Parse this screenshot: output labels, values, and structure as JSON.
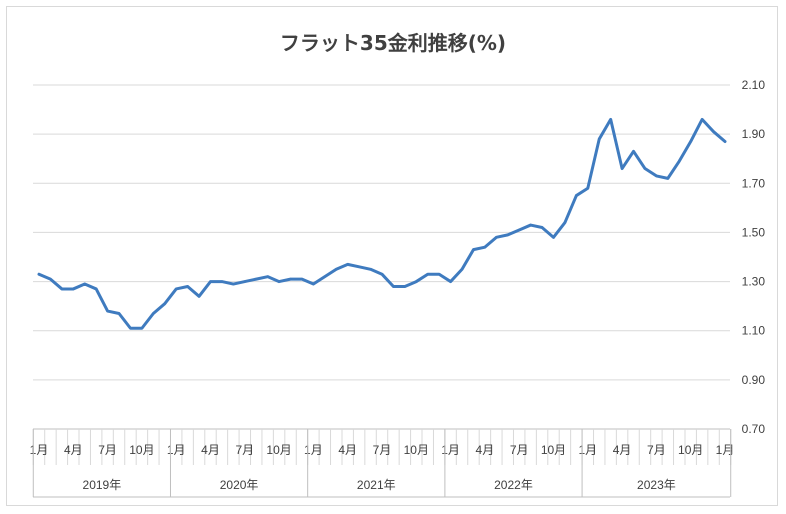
{
  "chart_data": {
    "type": "line",
    "title": "フラット35金利推移(%)",
    "xlabel": "",
    "ylabel": "",
    "ylim": [
      0.7,
      2.1
    ],
    "yticks": [
      "0.70",
      "0.90",
      "1.10",
      "1.30",
      "1.50",
      "1.70",
      "1.90",
      "2.10"
    ],
    "grid": true,
    "legend": "none",
    "line_color": "#3f7bbf",
    "month_tick_labels": [
      "1月",
      "4月",
      "7月",
      "10月"
    ],
    "years": [
      "2019年",
      "2020年",
      "2021年",
      "2022年",
      "2023年"
    ],
    "last_tick_label": "1月",
    "series": [
      {
        "values": [
          1.33,
          1.31,
          1.27,
          1.27,
          1.29,
          1.27,
          1.18,
          1.17,
          1.11,
          1.11,
          1.17,
          1.21,
          1.27,
          1.28,
          1.24,
          1.3,
          1.3,
          1.29,
          1.3,
          1.31,
          1.32,
          1.3,
          1.31,
          1.31,
          1.29,
          1.32,
          1.35,
          1.37,
          1.36,
          1.35,
          1.33,
          1.28,
          1.28,
          1.3,
          1.33,
          1.33,
          1.3,
          1.35,
          1.43,
          1.44,
          1.48,
          1.49,
          1.51,
          1.53,
          1.52,
          1.48,
          1.54,
          1.65,
          1.68,
          1.88,
          1.96,
          1.76,
          1.83,
          1.76,
          1.73,
          1.72,
          1.79,
          1.87,
          1.96,
          1.91,
          1.87
        ]
      }
    ]
  }
}
